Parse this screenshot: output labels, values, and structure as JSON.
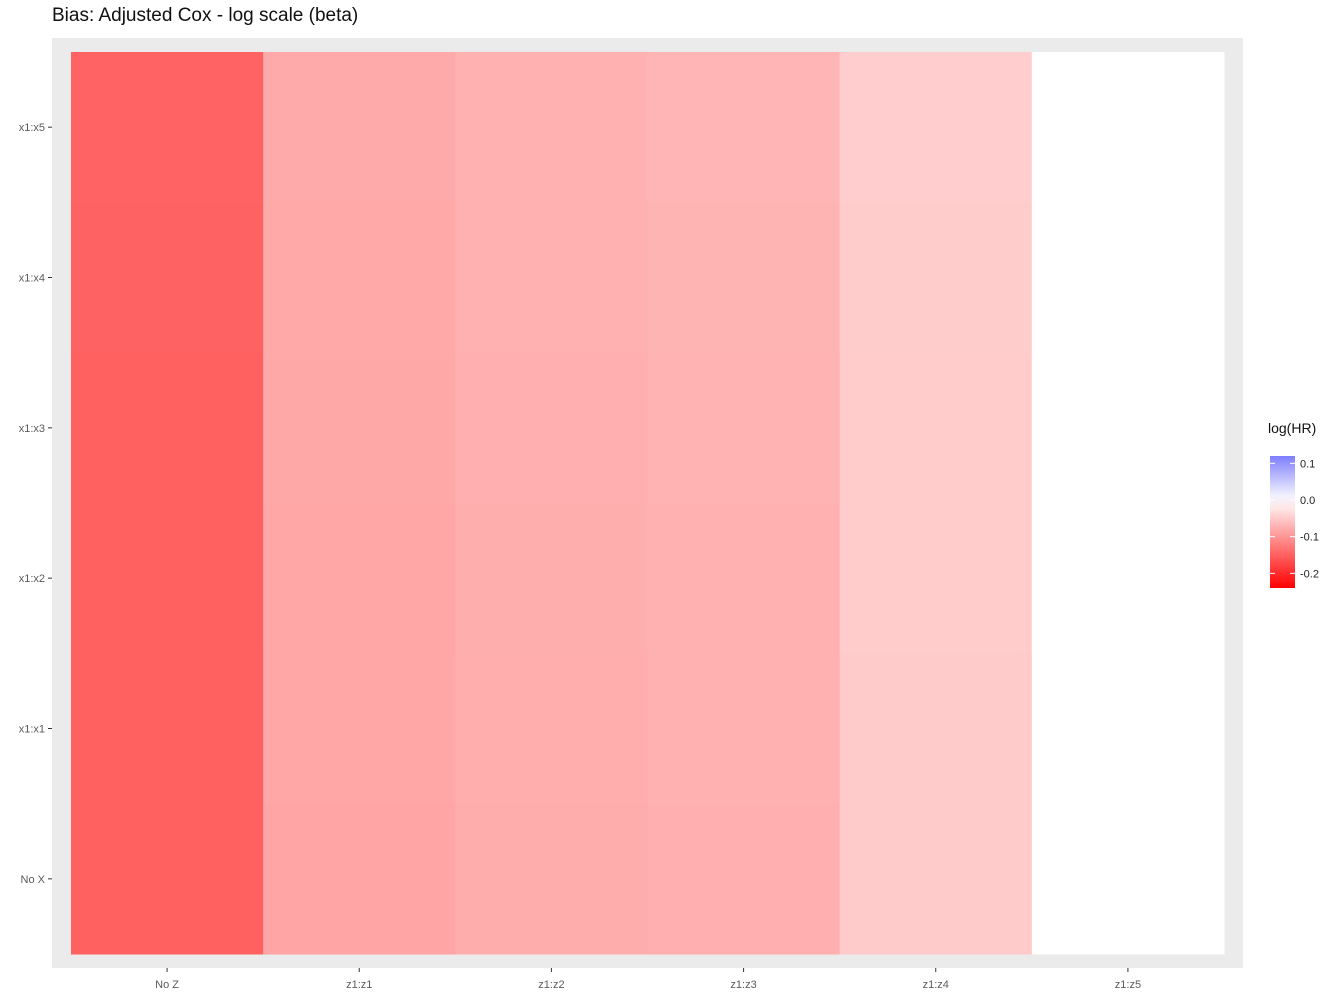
{
  "chart_data": {
    "type": "heatmap",
    "title": "Bias: Adjusted Cox - log scale (beta)",
    "xlabel": "",
    "ylabel": "",
    "x_categories": [
      "No Z",
      "z1:z1",
      "z1:z2",
      "z1:z3",
      "z1:z4",
      "z1:z5"
    ],
    "y_categories": [
      "No X",
      "x1:x1",
      "x1:x2",
      "x1:x3",
      "x1:x4",
      "x1:x5"
    ],
    "values": [
      [
        -0.15,
        -0.085,
        -0.078,
        -0.075,
        -0.05,
        0.0
      ],
      [
        -0.15,
        -0.084,
        -0.077,
        -0.074,
        -0.05,
        0.0
      ],
      [
        -0.149,
        -0.083,
        -0.076,
        -0.073,
        -0.049,
        0.0
      ],
      [
        -0.149,
        -0.082,
        -0.075,
        -0.072,
        -0.049,
        0.0
      ],
      [
        -0.148,
        -0.081,
        -0.074,
        -0.071,
        -0.048,
        0.0
      ],
      [
        -0.147,
        -0.08,
        -0.073,
        -0.07,
        -0.047,
        0.0
      ]
    ],
    "legend": {
      "title": "log(HR)",
      "position": "right",
      "breaks": [
        0.1,
        0.0,
        -0.1,
        -0.2
      ],
      "break_labels": [
        "0.1",
        "0.0",
        "-0.1",
        "-0.2"
      ],
      "limits": [
        -0.24,
        0.12
      ],
      "low_color": "#ff0000",
      "mid_color": "#ffffff",
      "high_color": "#7f7fff"
    },
    "panel_background": "#ebebeb",
    "grid": true
  }
}
